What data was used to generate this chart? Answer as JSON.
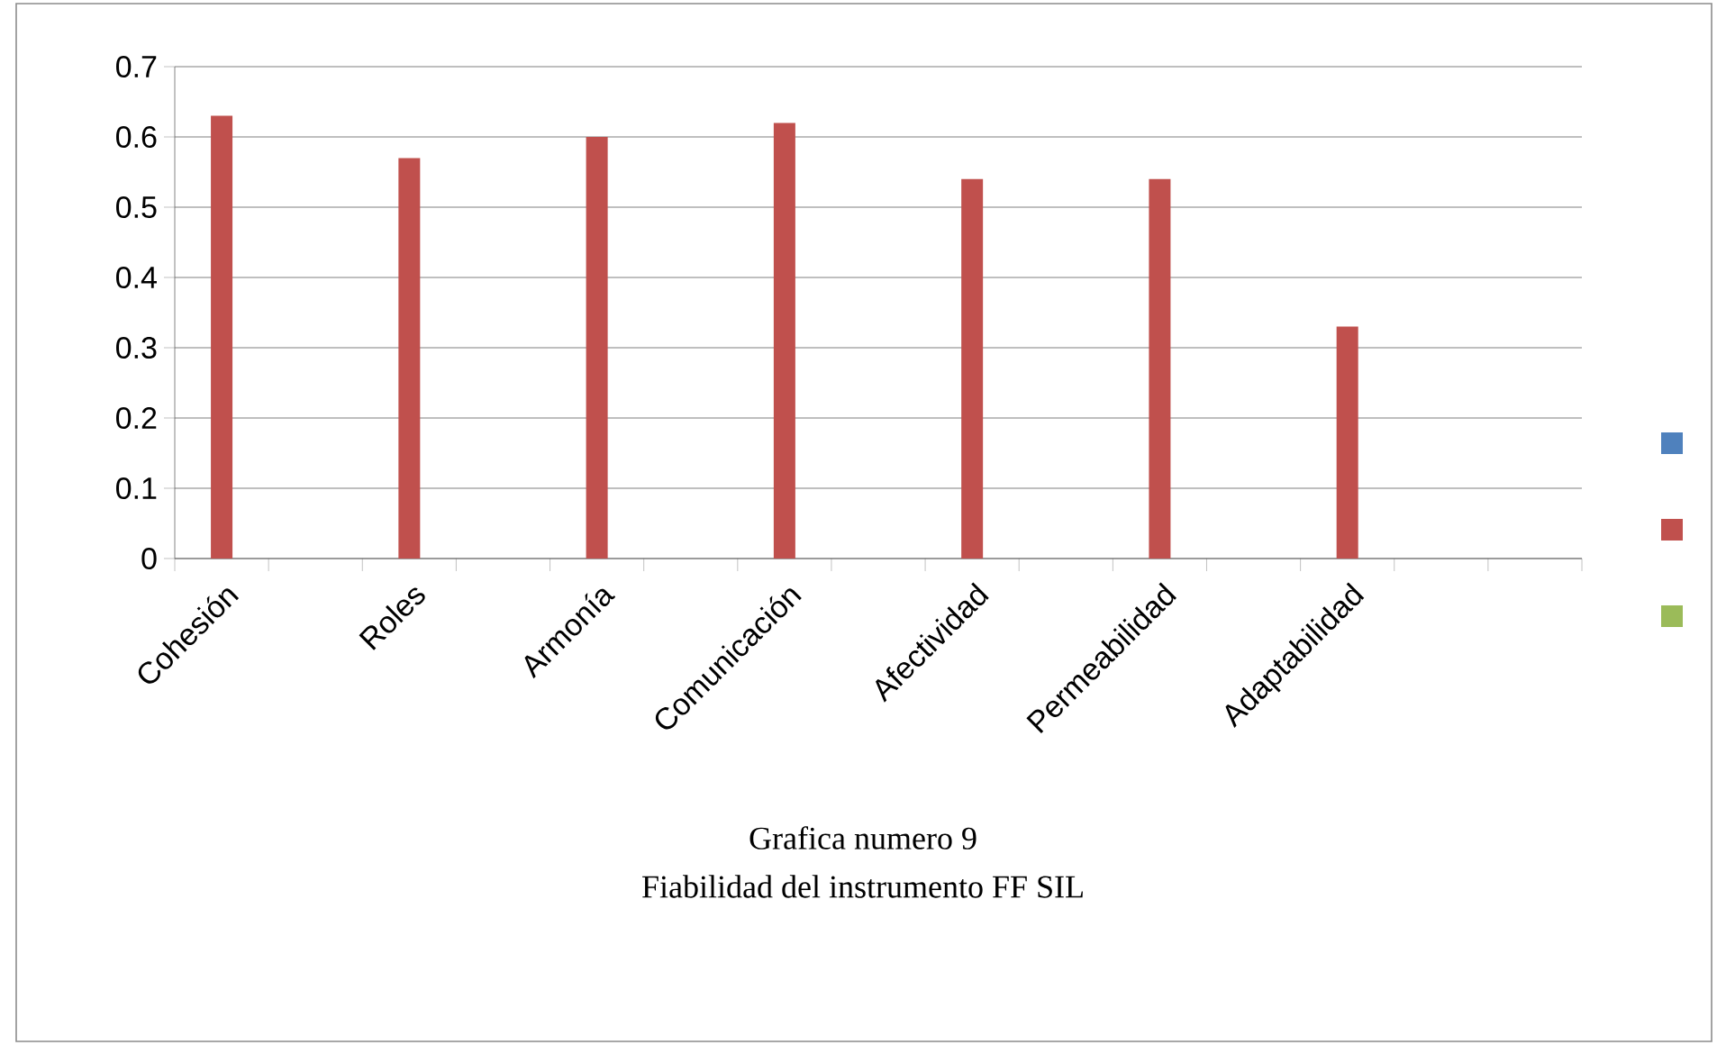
{
  "chart_data": {
    "type": "bar",
    "title": "Grafica numero 9",
    "subtitle": "Fiabilidad del instrumento FF SIL",
    "categories": [
      "Cohesión",
      null,
      "Roles",
      null,
      "Armonía",
      null,
      "Comunicación",
      null,
      "Afectividad",
      null,
      "Permeabilidad",
      null,
      "Adaptabilidad",
      null,
      null
    ],
    "series": [
      {
        "color": "#4f81bd",
        "values": [
          null,
          null,
          null,
          null,
          null,
          null,
          null,
          null,
          null,
          null,
          null,
          null,
          null,
          null,
          null
        ]
      },
      {
        "color": "#c0504d",
        "values": [
          0.63,
          null,
          0.57,
          null,
          0.6,
          null,
          0.62,
          null,
          0.54,
          null,
          0.54,
          null,
          0.33,
          null,
          null
        ]
      },
      {
        "color": "#9bbb59",
        "values": [
          null,
          null,
          null,
          null,
          null,
          null,
          null,
          null,
          null,
          null,
          null,
          null,
          null,
          null,
          null
        ]
      }
    ],
    "ylim": [
      0,
      0.7
    ],
    "yticks": [
      0,
      0.1,
      0.2,
      0.3,
      0.4,
      0.5,
      0.6,
      0.7
    ],
    "grid": "y"
  }
}
